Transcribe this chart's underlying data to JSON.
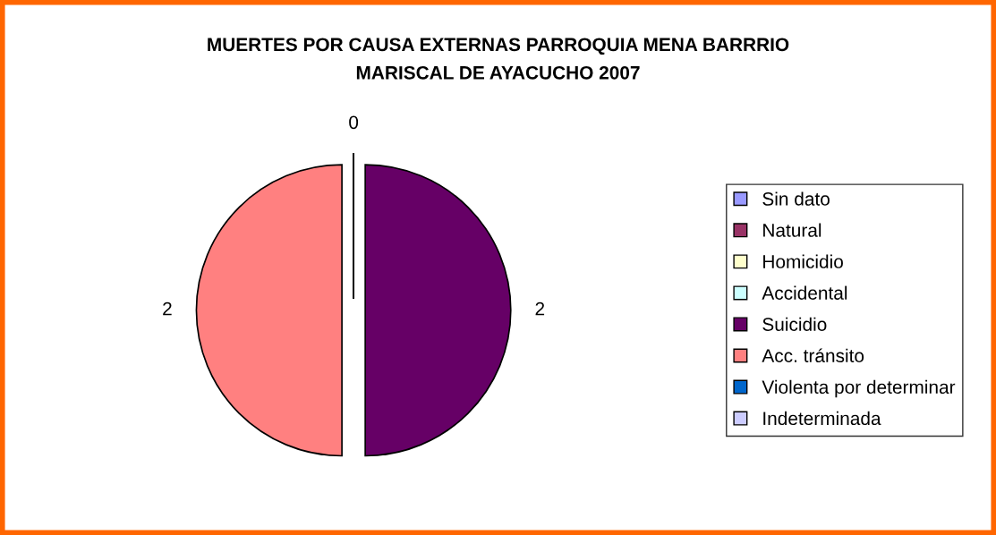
{
  "chart_data": {
    "type": "pie",
    "title": "MUERTES POR CAUSA EXTERNAS PARROQUIA MENA BARRRIO\nMARISCAL DE AYACUCHO 2007",
    "categories": [
      "Sin dato",
      "Natural",
      "Homicidio",
      "Accidental",
      "Suicidio",
      "Acc. tránsito",
      "Violenta por determinar",
      "Indeterminada"
    ],
    "values": [
      0,
      0,
      0,
      0,
      2,
      2,
      0,
      0
    ],
    "value_labels": [
      "0",
      null,
      null,
      null,
      "2",
      "2",
      null,
      null
    ],
    "colors": [
      "#9999ff",
      "#993366",
      "#ffffcc",
      "#ccffff",
      "#660066",
      "#ff8080",
      "#0066cc",
      "#ccccff"
    ],
    "legend": "right"
  }
}
